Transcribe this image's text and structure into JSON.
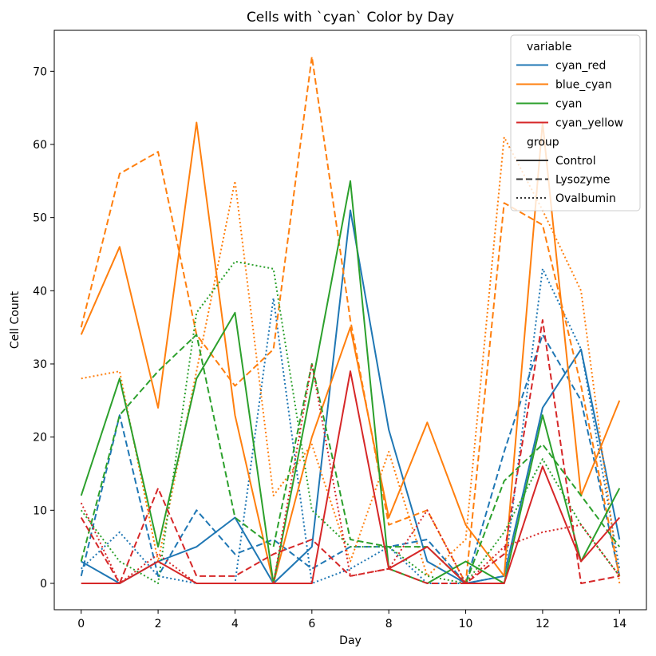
{
  "chart_data": {
    "type": "line",
    "title": "Cells with `cyan` Color by Day",
    "xlabel": "Day",
    "ylabel": "Cell Count",
    "xlim": [
      -0.7,
      14.7
    ],
    "ylim": [
      -3.6,
      75.6
    ],
    "xticks": [
      0,
      2,
      4,
      6,
      8,
      10,
      12,
      14
    ],
    "yticks": [
      0,
      10,
      20,
      30,
      40,
      50,
      60,
      70
    ],
    "x": [
      0,
      1,
      2,
      3,
      4,
      5,
      6,
      7,
      8,
      9,
      10,
      11,
      12,
      13,
      14
    ],
    "grid": false,
    "legend": {
      "placement": "top-right",
      "hue_title": "variable",
      "style_title": "group",
      "hue_entries": [
        "cyan_red",
        "blue_cyan",
        "cyan",
        "cyan_yellow"
      ],
      "style_entries": [
        "Control",
        "Lysozyme",
        "Ovalbumin"
      ]
    },
    "colors": {
      "cyan_red": "#1f77b4",
      "blue_cyan": "#ff7f0e",
      "cyan": "#2ca02c",
      "cyan_yellow": "#d62728"
    },
    "dash_styles": {
      "Control": "",
      "Lysozyme": "8 4",
      "Ovalbumin": "2 3"
    },
    "series": [
      {
        "variable": "cyan_red",
        "group": "Control",
        "values": [
          3,
          0,
          3,
          5,
          9,
          0,
          5,
          51,
          21,
          3,
          0,
          1,
          24,
          32,
          6
        ]
      },
      {
        "variable": "cyan_red",
        "group": "Lysozyme",
        "values": [
          1,
          23,
          1,
          10,
          4,
          6,
          2,
          5,
          5,
          6,
          0,
          18,
          34,
          25,
          1
        ]
      },
      {
        "variable": "cyan_red",
        "group": "Ovalbumin",
        "values": [
          2,
          7,
          1,
          0,
          0,
          39,
          0,
          2,
          5,
          0,
          0,
          1,
          43,
          32,
          2
        ]
      },
      {
        "variable": "blue_cyan",
        "group": "Control",
        "values": [
          34,
          46,
          24,
          63,
          23,
          0,
          20,
          35,
          9,
          22,
          8,
          1,
          63,
          12,
          25
        ]
      },
      {
        "variable": "blue_cyan",
        "group": "Lysozyme",
        "values": [
          35,
          56,
          59,
          34,
          27,
          32,
          72,
          36,
          8,
          10,
          0,
          52,
          49,
          27,
          1
        ]
      },
      {
        "variable": "blue_cyan",
        "group": "Ovalbumin",
        "values": [
          28,
          29,
          3,
          29,
          55,
          12,
          19,
          3,
          18,
          1,
          6,
          61,
          51,
          40,
          0
        ]
      },
      {
        "variable": "cyan",
        "group": "Control",
        "values": [
          12,
          28,
          5,
          28,
          37,
          0,
          27,
          55,
          2,
          0,
          3,
          0,
          23,
          3,
          13
        ]
      },
      {
        "variable": "cyan",
        "group": "Lysozyme",
        "values": [
          3,
          23,
          29,
          34,
          9,
          5,
          30,
          6,
          5,
          5,
          0,
          14,
          19,
          12,
          5
        ]
      },
      {
        "variable": "cyan",
        "group": "Ovalbumin",
        "values": [
          10,
          3,
          0,
          37,
          44,
          43,
          10,
          5,
          5,
          1,
          0,
          7,
          17,
          8,
          1
        ]
      },
      {
        "variable": "cyan_yellow",
        "group": "Control",
        "values": [
          0,
          0,
          3,
          0,
          0,
          0,
          0,
          29,
          2,
          5,
          0,
          0,
          16,
          3,
          9
        ]
      },
      {
        "variable": "cyan_yellow",
        "group": "Lysozyme",
        "values": [
          9,
          0,
          13,
          1,
          1,
          4,
          6,
          1,
          2,
          0,
          0,
          4,
          36,
          0,
          1
        ]
      },
      {
        "variable": "cyan_yellow",
        "group": "Ovalbumin",
        "values": [
          11,
          0,
          4,
          0,
          0,
          0,
          30,
          1,
          2,
          10,
          0,
          5,
          7,
          8,
          1
        ]
      }
    ]
  }
}
